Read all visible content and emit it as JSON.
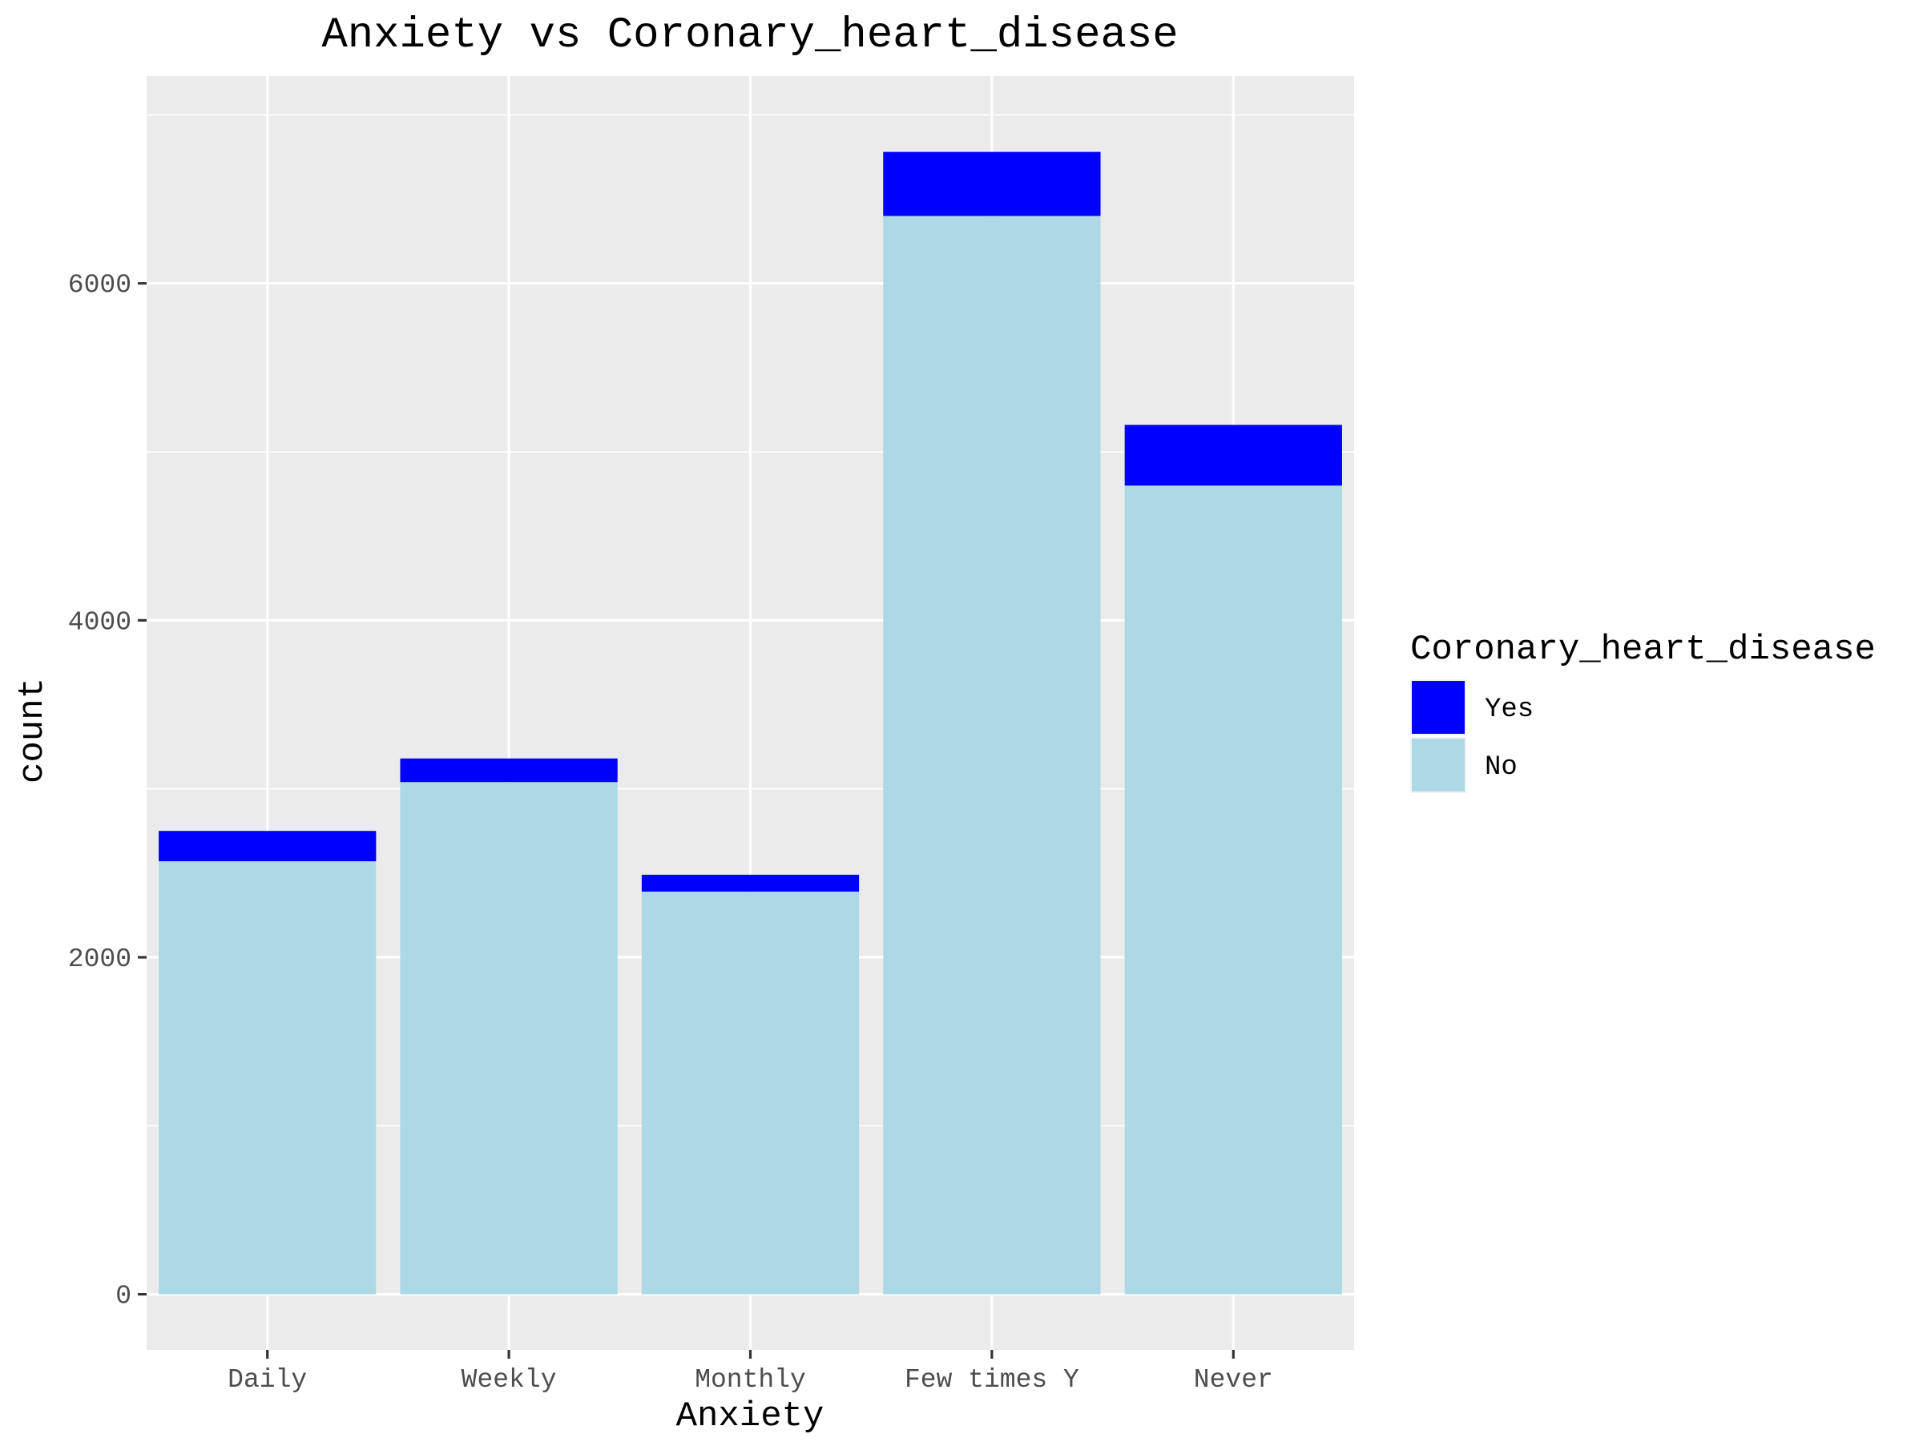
{
  "chart_data": {
    "type": "bar",
    "stacked": true,
    "title": "Anxiety vs Coronary_heart_disease",
    "xlabel": "Anxiety",
    "ylabel": "count",
    "categories": [
      "Daily",
      "Weekly",
      "Monthly",
      "Few times Y",
      "Never"
    ],
    "series": [
      {
        "name": "No",
        "values": [
          2570,
          3040,
          2390,
          6400,
          4800
        ],
        "color": "#add8e6"
      },
      {
        "name": "Yes",
        "values": [
          180,
          140,
          100,
          380,
          360
        ],
        "color": "#0000ff"
      }
    ],
    "ylim": [
      -330,
      7230
    ],
    "yticks": [
      0,
      2000,
      4000,
      6000
    ],
    "grid": true,
    "background": "#ebebeb",
    "legend": {
      "title": "Coronary_heart_disease",
      "position": "right",
      "entries": [
        {
          "label": "Yes",
          "color": "#0000ff"
        },
        {
          "label": "No",
          "color": "#add8e6"
        }
      ]
    }
  }
}
